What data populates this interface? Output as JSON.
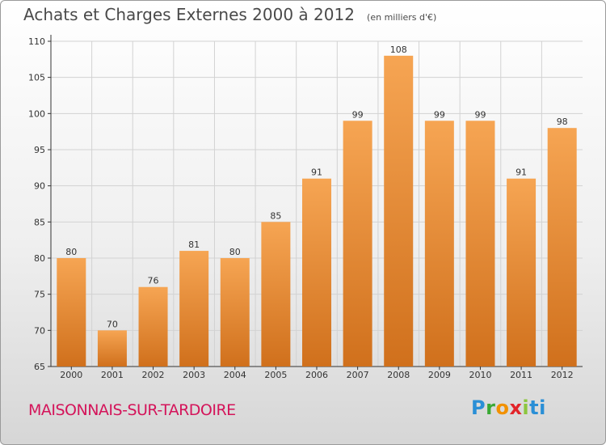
{
  "header": {
    "title": "Achats et Charges Externes 2000 à 2012",
    "subtitle": "(en milliers d'€)"
  },
  "footer": {
    "place": "MAISONNAIS-SUR-TARDOIRE",
    "logo": [
      "P",
      "r",
      "o",
      "x",
      "i",
      "ti"
    ]
  },
  "colors": {
    "bar_top": "#f6a553",
    "bar_bottom": "#d0701c",
    "place_text": "#d4145a"
  },
  "chart_data": {
    "type": "bar",
    "categories": [
      "2000",
      "2001",
      "2002",
      "2003",
      "2004",
      "2005",
      "2006",
      "2007",
      "2008",
      "2009",
      "2010",
      "2011",
      "2012"
    ],
    "values": [
      80,
      70,
      76,
      81,
      80,
      85,
      91,
      99,
      108,
      99,
      99,
      91,
      98
    ],
    "ylim": [
      65,
      110
    ],
    "yticks": [
      65,
      70,
      75,
      80,
      85,
      90,
      95,
      100,
      105,
      110
    ],
    "grid": true
  }
}
